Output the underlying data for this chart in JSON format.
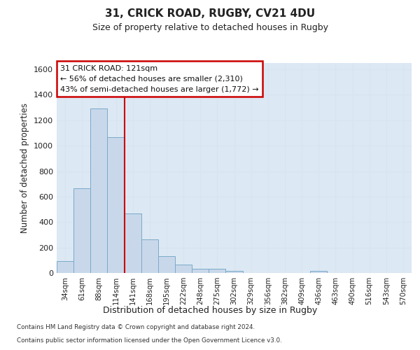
{
  "title_line1": "31, CRICK ROAD, RUGBY, CV21 4DU",
  "title_line2": "Size of property relative to detached houses in Rugby",
  "xlabel": "Distribution of detached houses by size in Rugby",
  "ylabel": "Number of detached properties",
  "bar_labels": [
    "34sqm",
    "61sqm",
    "88sqm",
    "114sqm",
    "141sqm",
    "168sqm",
    "195sqm",
    "222sqm",
    "248sqm",
    "275sqm",
    "302sqm",
    "329sqm",
    "356sqm",
    "382sqm",
    "409sqm",
    "436sqm",
    "463sqm",
    "490sqm",
    "516sqm",
    "543sqm",
    "570sqm"
  ],
  "bar_values": [
    95,
    665,
    1290,
    1065,
    470,
    265,
    130,
    65,
    33,
    33,
    15,
    0,
    0,
    0,
    0,
    15,
    0,
    0,
    0,
    0,
    0
  ],
  "bar_color": "#c8d8ea",
  "bar_edge_color": "#7aaac8",
  "ylim": [
    0,
    1650
  ],
  "yticks": [
    0,
    200,
    400,
    600,
    800,
    1000,
    1200,
    1400,
    1600
  ],
  "vline_x": 3.5,
  "vline_color": "#cc0000",
  "annotation_text": "31 CRICK ROAD: 121sqm\n← 56% of detached houses are smaller (2,310)\n43% of semi-detached houses are larger (1,772) →",
  "annotation_box_color": "#cc0000",
  "footer_line1": "Contains HM Land Registry data © Crown copyright and database right 2024.",
  "footer_line2": "Contains public sector information licensed under the Open Government Licence v3.0.",
  "bg_color": "#ffffff",
  "grid_color": "#d8e4f0",
  "axes_bg_color": "#dce8f3"
}
